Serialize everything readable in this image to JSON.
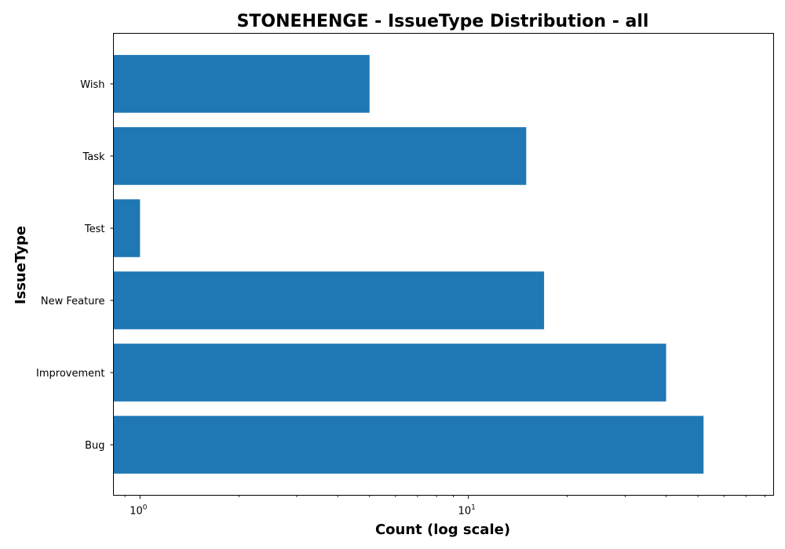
{
  "chart_data": {
    "type": "bar",
    "orientation": "horizontal",
    "title": "STONEHENGE - IssueType Distribution - all",
    "xlabel": "Count (log scale)",
    "ylabel": "IssueType",
    "xscale": "log",
    "xlim": [
      0.83,
      85
    ],
    "categories": [
      "Bug",
      "Improvement",
      "New Feature",
      "Test",
      "Task",
      "Wish"
    ],
    "values": [
      52,
      40,
      17,
      1,
      15,
      5
    ],
    "bar_color": "#1f77b4",
    "x_major_ticks": [
      {
        "value": 1,
        "base": "10",
        "exp": "0"
      },
      {
        "value": 10,
        "base": "10",
        "exp": "1"
      }
    ],
    "grid": false,
    "legend": "none"
  }
}
